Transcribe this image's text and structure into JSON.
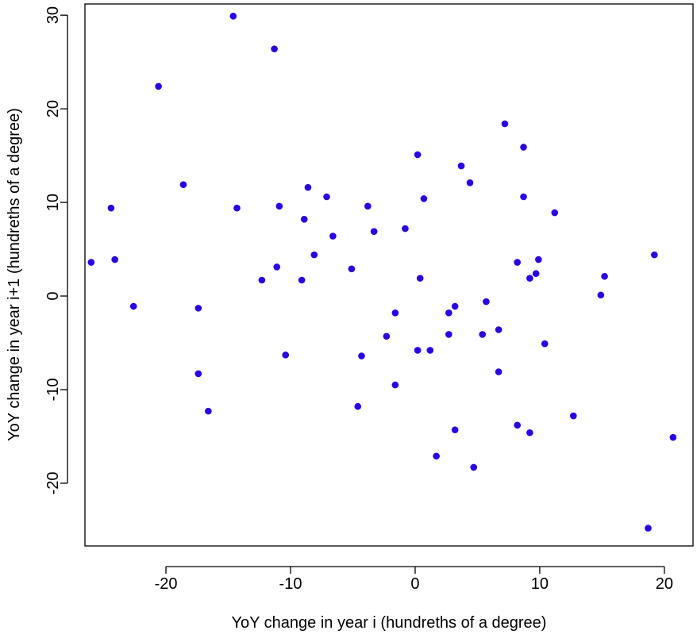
{
  "chart_data": {
    "type": "scatter",
    "title": "",
    "xlabel": "YoY change in year i (hundreths of a degree)",
    "ylabel": "YoY change in year i+1 (hundreths of a degree)",
    "xlim": [
      -26.5,
      22.3
    ],
    "ylim": [
      -26.7,
      31.2
    ],
    "xticks": [
      -20,
      -10,
      0,
      10,
      20
    ],
    "yticks": [
      -20,
      -10,
      0,
      10,
      20,
      30
    ],
    "grid": false,
    "legend": "none",
    "point_color": "#2a00ee",
    "points": [
      [
        -26.0,
        3.6
      ],
      [
        -24.4,
        9.4
      ],
      [
        -24.1,
        3.9
      ],
      [
        -22.6,
        -1.1
      ],
      [
        -20.6,
        22.4
      ],
      [
        -18.6,
        11.9
      ],
      [
        -17.4,
        -1.3
      ],
      [
        -17.4,
        -8.3
      ],
      [
        -16.6,
        -12.3
      ],
      [
        -14.6,
        29.9
      ],
      [
        -14.3,
        9.4
      ],
      [
        -12.3,
        1.7
      ],
      [
        -11.3,
        26.4
      ],
      [
        -11.1,
        3.1
      ],
      [
        -10.9,
        9.6
      ],
      [
        -10.4,
        -6.3
      ],
      [
        -9.1,
        1.7
      ],
      [
        -8.9,
        8.2
      ],
      [
        -8.6,
        11.6
      ],
      [
        -8.1,
        4.4
      ],
      [
        -7.1,
        10.6
      ],
      [
        -6.6,
        6.4
      ],
      [
        -5.1,
        2.9
      ],
      [
        -4.6,
        -11.8
      ],
      [
        -4.3,
        -6.4
      ],
      [
        -3.8,
        9.6
      ],
      [
        -3.3,
        6.9
      ],
      [
        -2.3,
        -4.3
      ],
      [
        -1.6,
        -9.5
      ],
      [
        -1.6,
        -1.8
      ],
      [
        -0.8,
        7.2
      ],
      [
        0.2,
        -5.8
      ],
      [
        0.2,
        15.1
      ],
      [
        0.4,
        1.9
      ],
      [
        0.7,
        10.4
      ],
      [
        1.2,
        -5.8
      ],
      [
        1.7,
        -17.1
      ],
      [
        2.7,
        -4.1
      ],
      [
        2.7,
        -1.8
      ],
      [
        3.2,
        -14.3
      ],
      [
        3.2,
        -1.1
      ],
      [
        3.7,
        13.9
      ],
      [
        4.4,
        12.1
      ],
      [
        4.7,
        -18.3
      ],
      [
        5.4,
        -4.1
      ],
      [
        5.7,
        -0.6
      ],
      [
        6.7,
        -3.6
      ],
      [
        6.7,
        -8.1
      ],
      [
        7.2,
        18.4
      ],
      [
        8.2,
        3.6
      ],
      [
        8.2,
        -13.8
      ],
      [
        8.7,
        15.9
      ],
      [
        8.7,
        10.6
      ],
      [
        9.2,
        1.9
      ],
      [
        9.2,
        -14.6
      ],
      [
        9.7,
        2.4
      ],
      [
        9.9,
        3.9
      ],
      [
        10.4,
        -5.1
      ],
      [
        11.2,
        8.9
      ],
      [
        12.7,
        -12.8
      ],
      [
        14.9,
        0.1
      ],
      [
        15.2,
        2.1
      ],
      [
        18.7,
        -24.8
      ],
      [
        19.2,
        4.4
      ],
      [
        20.7,
        -15.1
      ]
    ]
  }
}
